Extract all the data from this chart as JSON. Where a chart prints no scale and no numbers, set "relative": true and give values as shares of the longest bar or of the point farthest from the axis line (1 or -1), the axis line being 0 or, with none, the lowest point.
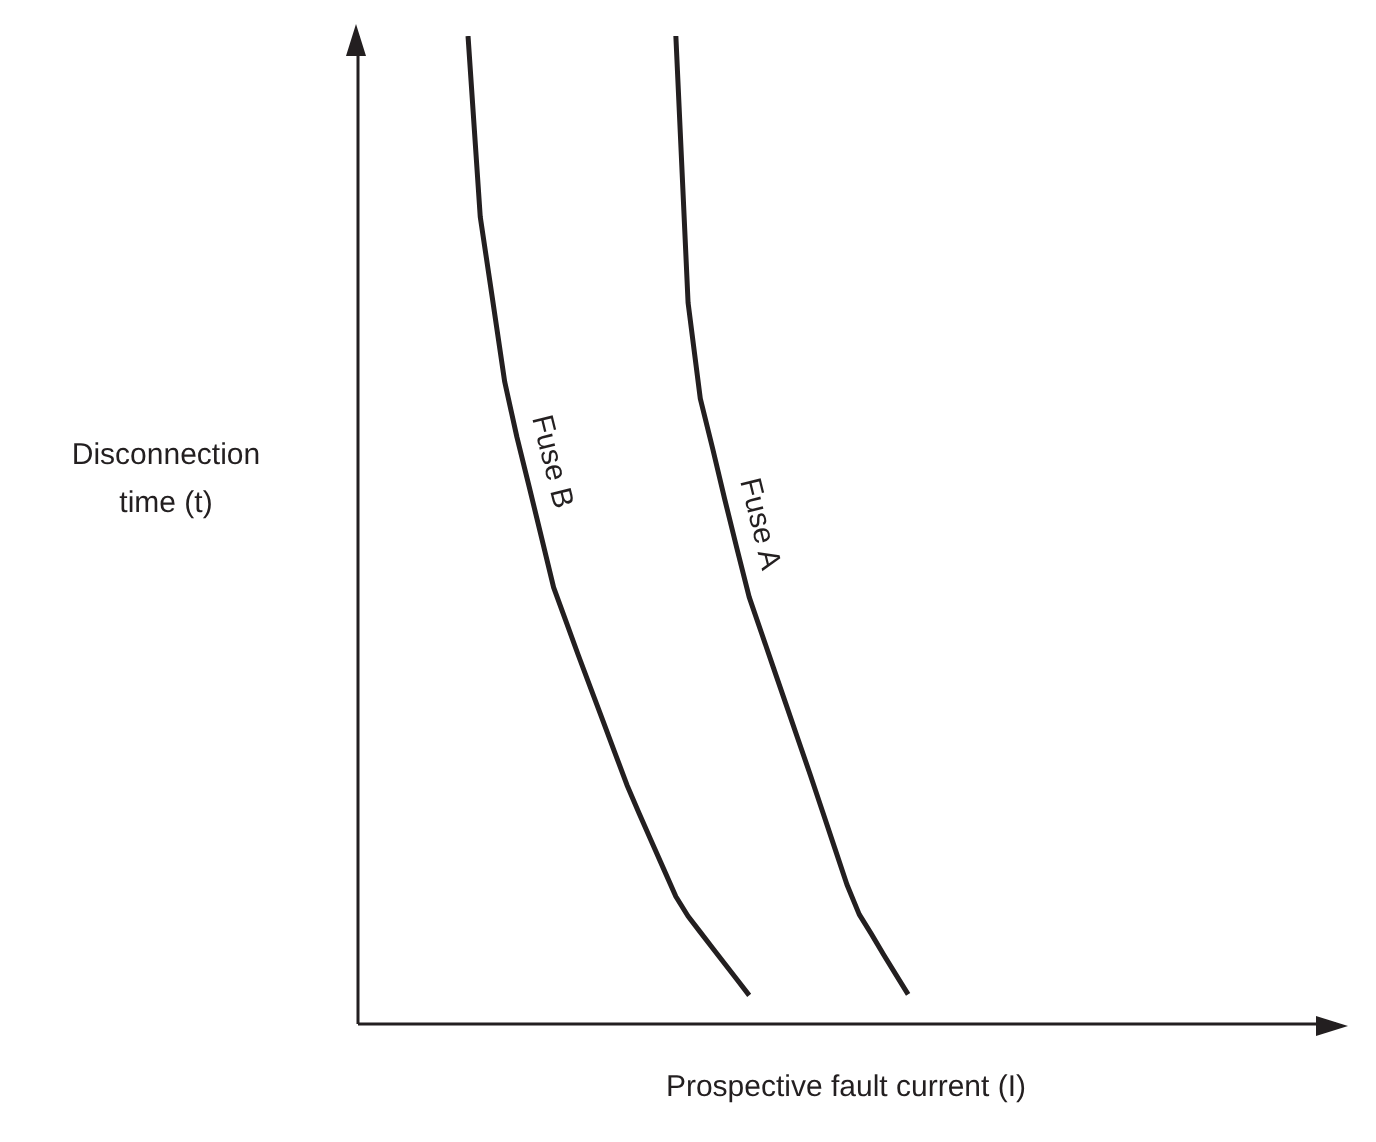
{
  "chart_data": {
    "type": "line",
    "relative": true,
    "xlabel": "Prospective fault current (I)",
    "ylabel": "Disconnection time (t)",
    "categories": [
      null,
      null,
      null,
      null,
      null,
      null,
      null,
      null,
      null,
      null,
      null,
      null,
      null,
      null,
      null,
      null,
      null,
      null,
      null,
      null,
      null,
      null,
      null,
      null,
      null,
      null,
      null,
      null,
      null,
      null,
      null,
      null,
      null,
      null,
      null,
      null,
      null,
      null,
      null,
      null,
      null,
      null,
      null,
      null,
      null,
      null,
      null,
      null,
      null,
      null,
      null,
      null,
      null,
      null,
      null,
      null,
      null,
      null,
      null,
      null,
      null,
      null,
      null,
      null,
      null,
      null,
      null,
      null,
      null,
      null,
      null,
      null,
      null,
      null,
      null,
      null,
      null,
      null,
      null,
      null,
      null
    ],
    "series": [
      {
        "name": "Fuse B",
        "color": "#231f20",
        "values": [
          null,
          null,
          null,
          null,
          null,
          null,
          null,
          null,
          null,
          1.0,
          0.817,
          0.734,
          0.65,
          0.594,
          0.544,
          0.493,
          0.442,
          0.408,
          0.374,
          0.341,
          0.308,
          0.275,
          0.242,
          0.213,
          0.185,
          0.157,
          0.129,
          0.109,
          0.093,
          0.077,
          0.061,
          0.045,
          0.029,
          null,
          null,
          null,
          null,
          null,
          null,
          null,
          null,
          null,
          null,
          null,
          null,
          null,
          null,
          null,
          null,
          null,
          null,
          null,
          null,
          null,
          null,
          null,
          null,
          null,
          null,
          null,
          null,
          null,
          null,
          null,
          null,
          null,
          null,
          null,
          null,
          null,
          null,
          null,
          null,
          null,
          null,
          null,
          null,
          null,
          null,
          null,
          null
        ]
      },
      {
        "name": "Fuse A",
        "color": "#231f20",
        "values": [
          null,
          null,
          null,
          null,
          null,
          null,
          null,
          null,
          null,
          null,
          null,
          null,
          null,
          null,
          null,
          null,
          null,
          null,
          null,
          null,
          null,
          null,
          null,
          null,
          null,
          null,
          1.0,
          0.73,
          0.633,
          0.583,
          0.531,
          0.481,
          0.432,
          0.396,
          0.36,
          0.324,
          0.288,
          0.252,
          0.215,
          0.178,
          0.141,
          0.111,
          0.091,
          0.07,
          0.05,
          0.03,
          null,
          null,
          null,
          null,
          null,
          null,
          null,
          null,
          null,
          null,
          null,
          null,
          null,
          null,
          null,
          null,
          null,
          null,
          null,
          null,
          null,
          null,
          null,
          null,
          null,
          null,
          null,
          null,
          null,
          null,
          null,
          null,
          null,
          null,
          null
        ]
      }
    ]
  }
}
